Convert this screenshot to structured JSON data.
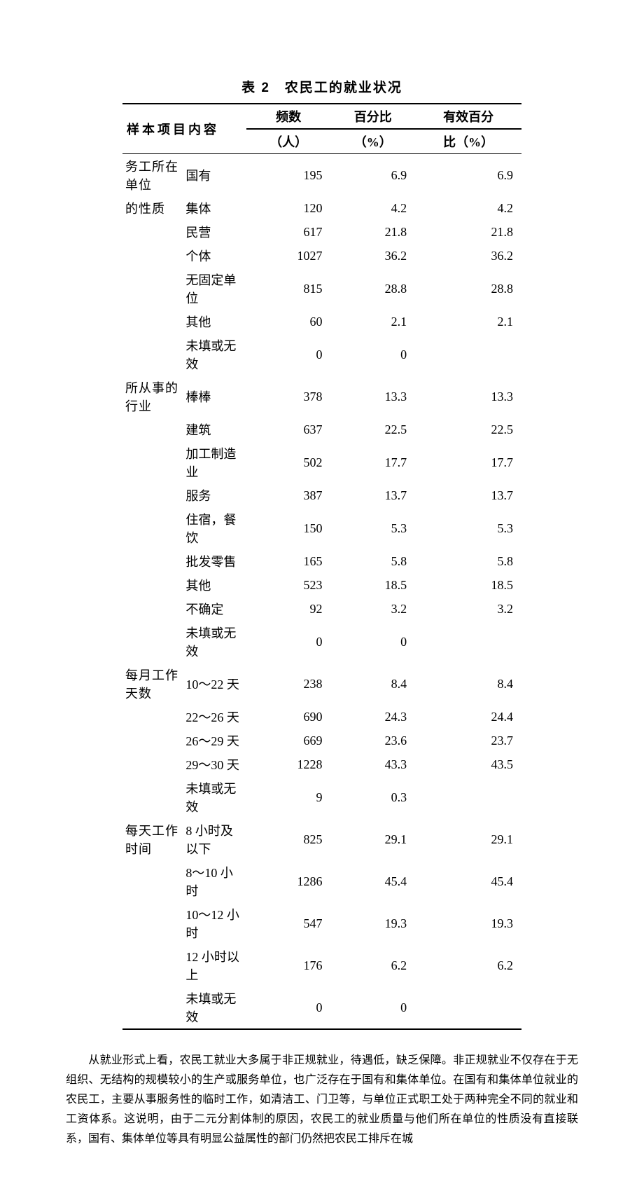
{
  "title": "表 2　农民工的就业状况",
  "columns": {
    "sample_header": "样本项目内容",
    "freq_line1": "频数",
    "freq_line2": "（人）",
    "pct_line1": "百分比",
    "pct_line2": "（%）",
    "valid_line1": "有效百分",
    "valid_line2": "比（%）"
  },
  "groups": [
    {
      "name": "务工所在单位的性质",
      "name_lines": [
        "务工所在单位",
        "的性质"
      ],
      "rows": [
        {
          "item": "国有",
          "freq": "195",
          "pct": "6.9",
          "valid": "6.9"
        },
        {
          "item": "集体",
          "freq": "120",
          "pct": "4.2",
          "valid": "4.2"
        },
        {
          "item": "民营",
          "freq": "617",
          "pct": "21.8",
          "valid": "21.8"
        },
        {
          "item": "个体",
          "freq": "1027",
          "pct": "36.2",
          "valid": "36.2"
        },
        {
          "item": "无固定单位",
          "freq": "815",
          "pct": "28.8",
          "valid": "28.8"
        },
        {
          "item": "其他",
          "freq": "60",
          "pct": "2.1",
          "valid": "2.1"
        },
        {
          "item": "未填或无效",
          "freq": "0",
          "pct": "0",
          "valid": ""
        }
      ]
    },
    {
      "name": "所从事的行业",
      "name_lines": [
        "所从事的行业"
      ],
      "rows": [
        {
          "item": "棒棒",
          "freq": "378",
          "pct": "13.3",
          "valid": "13.3"
        },
        {
          "item": "建筑",
          "freq": "637",
          "pct": "22.5",
          "valid": "22.5"
        },
        {
          "item": "加工制造业",
          "freq": "502",
          "pct": "17.7",
          "valid": "17.7"
        },
        {
          "item": "服务",
          "freq": "387",
          "pct": "13.7",
          "valid": "13.7"
        },
        {
          "item": "住宿，餐饮",
          "freq": "150",
          "pct": "5.3",
          "valid": "5.3"
        },
        {
          "item": "批发零售",
          "freq": "165",
          "pct": "5.8",
          "valid": "5.8"
        },
        {
          "item": "其他",
          "freq": "523",
          "pct": "18.5",
          "valid": "18.5"
        },
        {
          "item": "不确定",
          "freq": "92",
          "pct": "3.2",
          "valid": "3.2"
        },
        {
          "item": "未填或无效",
          "freq": "0",
          "pct": "0",
          "valid": ""
        }
      ]
    },
    {
      "name": "每月工作天数",
      "name_lines": [
        "每月工作天数"
      ],
      "rows": [
        {
          "item": "10～22 天",
          "freq": "238",
          "pct": "8.4",
          "valid": "8.4"
        },
        {
          "item": "22～26 天",
          "freq": "690",
          "pct": "24.3",
          "valid": "24.4"
        },
        {
          "item": "26～29 天",
          "freq": "669",
          "pct": "23.6",
          "valid": "23.7"
        },
        {
          "item": "29～30 天",
          "freq": "1228",
          "pct": "43.3",
          "valid": "43.5"
        },
        {
          "item": "未填或无效",
          "freq": "9",
          "pct": "0.3",
          "valid": ""
        }
      ]
    },
    {
      "name": "每天工作时间",
      "name_lines": [
        "每天工作时间"
      ],
      "rows": [
        {
          "item": "8 小时及以下",
          "freq": "825",
          "pct": "29.1",
          "valid": "29.1"
        },
        {
          "item": "8～10 小时",
          "freq": "1286",
          "pct": "45.4",
          "valid": "45.4"
        },
        {
          "item": "10～12 小时",
          "freq": "547",
          "pct": "19.3",
          "valid": "19.3"
        },
        {
          "item": "12 小时以上",
          "freq": "176",
          "pct": "6.2",
          "valid": "6.2"
        },
        {
          "item": "未填或无效",
          "freq": "0",
          "pct": "0",
          "valid": ""
        }
      ]
    }
  ],
  "paragraph": "从就业形式上看，农民工就业大多属于非正规就业，待遇低，缺乏保障。非正规就业不仅存在于无组织、无结构的规模较小的生产或服务单位，也广泛存在于国有和集体单位。在国有和集体单位就业的农民工，主要从事服务性的临时工作，如清洁工、门卫等，与单位正式职工处于两种完全不同的就业和工资体系。这说明，由于二元分割体制的原因，农民工的就业质量与他们所在单位的性质没有直接联系，国有、集体单位等具有明显公益属性的部门仍然把农民工排斥在城"
}
